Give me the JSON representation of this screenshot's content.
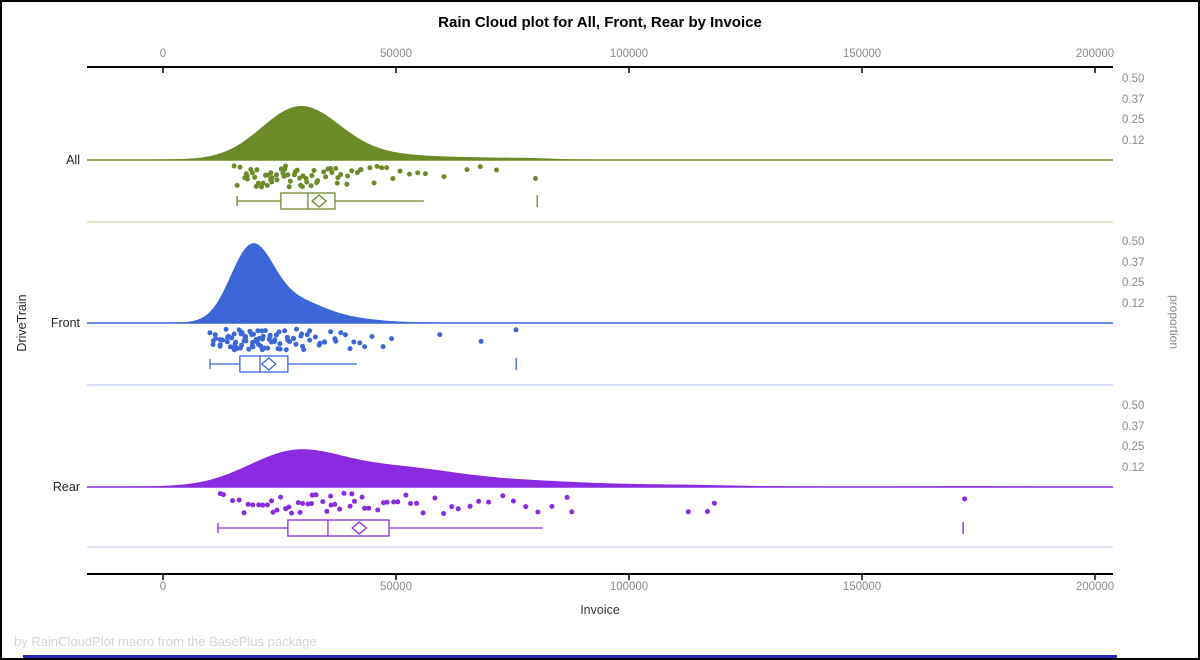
{
  "title": "Rain Cloud plot for All, Front, Rear by Invoice",
  "footer": "by RainCloudPlot macro from the BasePlus package",
  "colors": {
    "axis_line": "#000000",
    "tick_label": "#8a8a8a",
    "bottom_bar": "#2828bc",
    "page_border": "#000000"
  },
  "chart_data": {
    "type": "raincloud (half-violin density + jittered strip points + box plot per category)",
    "title": "Rain Cloud plot for All, Front, Rear by Invoice",
    "x_axis": {
      "label": "Invoice",
      "min": 0,
      "max": 200000,
      "ticks": [
        0,
        50000,
        100000,
        150000,
        200000
      ],
      "shown_top_and_bottom": true
    },
    "y_axis": {
      "label": "DriveTrain",
      "categories": [
        "All",
        "Front",
        "Rear"
      ]
    },
    "proportion_axis": {
      "label": "proportion",
      "ticks": [
        0.5,
        0.37,
        0.25,
        0.12
      ]
    },
    "series": [
      {
        "name": "All",
        "color": "#6d8a28",
        "separator_color": "#c9d6a4",
        "box": {
          "whisker_low": 15900,
          "q1": 25300,
          "median": 31100,
          "q3": 36900,
          "mean": 33500,
          "whisker_high": 56000,
          "outlier_fence": 80300
        },
        "density": {
          "peak_x": 29800,
          "peak_proportion": 0.33,
          "modes": [
            {
              "center": 29500,
              "sd": 8300,
              "weight": 1.0
            },
            {
              "center": 47000,
              "sd": 9000,
              "weight": 0.09
            },
            {
              "center": 66000,
              "sd": 8000,
              "weight": 0.035
            },
            {
              "center": 79000,
              "sd": 5000,
              "weight": 0.02
            }
          ]
        },
        "points": [
          15800,
          16300,
          16900,
          17200,
          17600,
          18000,
          18400,
          18700,
          19100,
          19400,
          19800,
          20200,
          20500,
          20900,
          21200,
          21600,
          21900,
          22300,
          22700,
          23000,
          23400,
          23800,
          24100,
          24500,
          24900,
          25200,
          25600,
          26000,
          26400,
          26800,
          27100,
          27500,
          27900,
          28300,
          28700,
          29100,
          29500,
          29900,
          30300,
          30800,
          31200,
          31600,
          32100,
          32500,
          33000,
          33500,
          34000,
          34500,
          35000,
          35600,
          36100,
          36700,
          37300,
          37900,
          38500,
          39200,
          39900,
          40600,
          41400,
          42200,
          43000,
          43900,
          44900,
          45900,
          47000,
          48200,
          49500,
          50900,
          52500,
          54300,
          56200,
          60100,
          64900,
          68300,
          71700,
          80300
        ]
      },
      {
        "name": "Front",
        "color": "#3d67d8",
        "separator_color": "#bccaf0",
        "box": {
          "whisker_low": 10100,
          "q1": 16500,
          "median": 20800,
          "q3": 26800,
          "mean": 22700,
          "whisker_high": 41600,
          "outlier_fence": 75800
        },
        "density": {
          "peak_x": 19300,
          "peak_proportion": 0.49,
          "modes": [
            {
              "center": 19000,
              "sd": 4500,
              "weight": 1.0
            },
            {
              "center": 28500,
              "sd": 6000,
              "weight": 0.28
            },
            {
              "center": 40000,
              "sd": 6500,
              "weight": 0.05
            }
          ]
        },
        "points": [
          10300,
          10700,
          11000,
          11300,
          11600,
          11900,
          12200,
          12400,
          12700,
          12900,
          13200,
          13400,
          13700,
          13900,
          14100,
          14400,
          14600,
          14800,
          15000,
          15300,
          15500,
          15700,
          15900,
          16100,
          16300,
          16500,
          16700,
          16900,
          17100,
          17300,
          17500,
          17700,
          17900,
          18100,
          18300,
          18500,
          18700,
          18900,
          19100,
          19300,
          19500,
          19700,
          19900,
          20100,
          20300,
          20500,
          20700,
          20900,
          21100,
          21300,
          21600,
          21800,
          22000,
          22300,
          22500,
          22800,
          23000,
          23300,
          23500,
          23800,
          24100,
          24400,
          24700,
          25000,
          25300,
          25600,
          25900,
          26200,
          26500,
          26900,
          27200,
          27600,
          28000,
          28400,
          28800,
          29200,
          29600,
          30000,
          30500,
          31000,
          31500,
          32000,
          32600,
          33200,
          33800,
          34400,
          35100,
          35800,
          36500,
          37300,
          38100,
          39000,
          40000,
          41000,
          42000,
          43500,
          45000,
          46800,
          48700,
          59400,
          68700,
          75600
        ]
      },
      {
        "name": "Rear",
        "color": "#8a2be2",
        "separator_color": "#ddc8f4",
        "box": {
          "whisker_low": 11800,
          "q1": 26800,
          "median": 35400,
          "q3": 48500,
          "mean": 42100,
          "whisker_high": 81500,
          "outlier_fence": 171700
        },
        "density": {
          "peak_x": 30000,
          "peak_proportion": 0.23,
          "modes": [
            {
              "center": 28000,
              "sd": 10000,
              "weight": 1.0
            },
            {
              "center": 50000,
              "sd": 13000,
              "weight": 0.55
            },
            {
              "center": 78000,
              "sd": 14000,
              "weight": 0.16
            },
            {
              "center": 110000,
              "sd": 12000,
              "weight": 0.05
            },
            {
              "center": 172000,
              "sd": 7000,
              "weight": 0.012
            }
          ]
        },
        "points": [
          12400,
          13500,
          14800,
          16000,
          17200,
          18300,
          19400,
          20400,
          21400,
          22300,
          23200,
          24100,
          24900,
          25700,
          26500,
          27300,
          28000,
          28800,
          29500,
          30300,
          31000,
          31800,
          32500,
          33300,
          34000,
          34800,
          35600,
          36400,
          37200,
          38000,
          38900,
          39800,
          40700,
          41600,
          42600,
          43600,
          44600,
          45700,
          46800,
          48000,
          49200,
          50500,
          51800,
          53200,
          54700,
          56300,
          58000,
          59800,
          61700,
          63700,
          65800,
          68000,
          70300,
          72700,
          75200,
          77800,
          80500,
          83300,
          86200,
          88000,
          112400,
          116700,
          118500,
          171900
        ]
      }
    ]
  }
}
